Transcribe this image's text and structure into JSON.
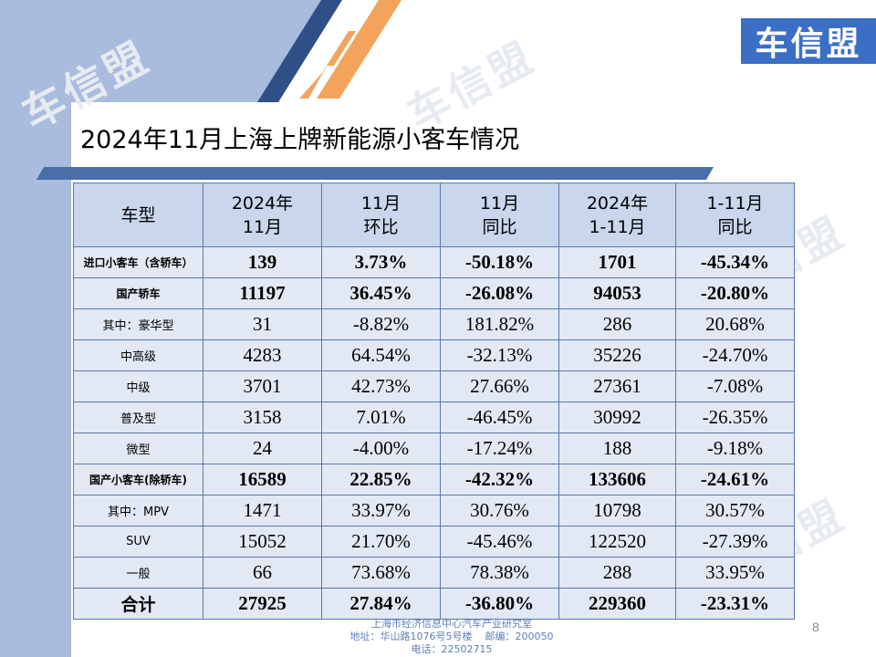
{
  "logo_text": "车信盟",
  "watermark_text": "车信盟",
  "title": "2024年11月上海上牌新能源小客车情况",
  "table": {
    "headers": [
      [
        "车型"
      ],
      [
        "2024年",
        "11月"
      ],
      [
        "11月",
        "环比"
      ],
      [
        "11月",
        "同比"
      ],
      [
        "2024年",
        "1-11月"
      ],
      [
        "1-11月",
        "同比"
      ]
    ],
    "rows": [
      {
        "label": "进口小客车（含轿车）",
        "bold": true,
        "values": [
          "139",
          "3.73%",
          "-50.18%",
          "1701",
          "-45.34%"
        ]
      },
      {
        "label": "国产轿车",
        "bold": true,
        "values": [
          "11197",
          "36.45%",
          "-26.08%",
          "94053",
          "-20.80%"
        ]
      },
      {
        "label": "其中：豪华型",
        "bold": false,
        "values": [
          "31",
          "-8.82%",
          "181.82%",
          "286",
          "20.68%"
        ]
      },
      {
        "label": "中高级",
        "bold": false,
        "values": [
          "4283",
          "64.54%",
          "-32.13%",
          "35226",
          "-24.70%"
        ]
      },
      {
        "label": "中级",
        "bold": false,
        "values": [
          "3701",
          "42.73%",
          "27.66%",
          "27361",
          "-7.08%"
        ]
      },
      {
        "label": "普及型",
        "bold": false,
        "values": [
          "3158",
          "7.01%",
          "-46.45%",
          "30992",
          "-26.35%"
        ]
      },
      {
        "label": "微型",
        "bold": false,
        "values": [
          "24",
          "-4.00%",
          "-17.24%",
          "188",
          "-9.18%"
        ]
      },
      {
        "label": "国产小客车(除轿车)",
        "bold": true,
        "values": [
          "16589",
          "22.85%",
          "-42.32%",
          "133606",
          "-24.61%"
        ]
      },
      {
        "label": "其中：MPV",
        "bold": false,
        "values": [
          "1471",
          "33.97%",
          "30.76%",
          "10798",
          "30.57%"
        ]
      },
      {
        "label": "SUV",
        "bold": false,
        "values": [
          "15052",
          "21.70%",
          "-45.46%",
          "122520",
          "-27.39%"
        ]
      },
      {
        "label": "一般",
        "bold": false,
        "values": [
          "66",
          "73.68%",
          "78.38%",
          "288",
          "33.95%"
        ]
      },
      {
        "label": "合计",
        "bold": true,
        "total": true,
        "values": [
          "27925",
          "27.84%",
          "-36.80%",
          "229360",
          "-23.31%"
        ]
      }
    ]
  },
  "footer": {
    "line1": "上海市经济信息中心汽车产业研究室",
    "line2": "地址：华山路1076号5号楼    邮编：200050",
    "line3": "电话：22502715"
  },
  "page_number": "8",
  "colors": {
    "side_band": "#a9bcdd",
    "navy_wedge": "#2f4f86",
    "orange_wedge": "#f3a35c",
    "header_fill": "#c9d6ec",
    "cell_fill": "#e2e9f4",
    "logo_bg": "#3b6fc6"
  }
}
